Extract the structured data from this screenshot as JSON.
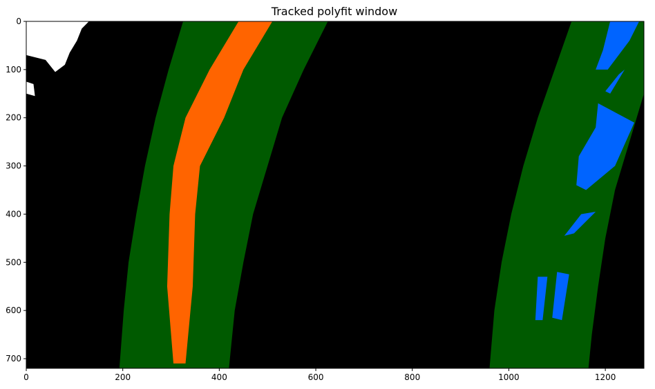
{
  "chart_data": {
    "type": "image",
    "title": "Tracked polyfit window",
    "xlabel": "",
    "ylabel": "",
    "xlim": [
      0,
      1280
    ],
    "ylim": [
      720,
      0
    ],
    "x_ticks": [
      0,
      200,
      400,
      600,
      800,
      1000,
      1200
    ],
    "y_ticks": [
      0,
      100,
      200,
      300,
      400,
      500,
      600,
      700
    ],
    "background_color": "#000000",
    "window_color": "#005a00",
    "left_lane_color": "#ff6400",
    "right_lane_color": "#0064ff",
    "noise_color": "#ffffff",
    "windows": [
      {
        "name": "left-lane-window",
        "left_edge": [
          [
            325,
            0
          ],
          [
            295,
            100
          ],
          [
            268,
            200
          ],
          [
            246,
            300
          ],
          [
            228,
            400
          ],
          [
            212,
            500
          ],
          [
            202,
            600
          ],
          [
            193,
            720
          ]
        ],
        "right_edge": [
          [
            625,
            0
          ],
          [
            575,
            100
          ],
          [
            530,
            200
          ],
          [
            500,
            300
          ],
          [
            470,
            400
          ],
          [
            450,
            500
          ],
          [
            432,
            600
          ],
          [
            420,
            720
          ]
        ]
      },
      {
        "name": "right-lane-window",
        "left_edge": [
          [
            1130,
            0
          ],
          [
            1095,
            100
          ],
          [
            1060,
            200
          ],
          [
            1030,
            300
          ],
          [
            1005,
            400
          ],
          [
            985,
            500
          ],
          [
            970,
            600
          ],
          [
            960,
            720
          ]
        ],
        "right_edge": [
          [
            1280,
            0
          ],
          [
            1280,
            150
          ],
          [
            1250,
            250
          ],
          [
            1220,
            350
          ],
          [
            1200,
            450
          ],
          [
            1185,
            550
          ],
          [
            1172,
            650
          ],
          [
            1165,
            720
          ]
        ]
      }
    ],
    "left_lane_pixels": [
      {
        "x": [
          [
            440,
            510
          ],
          [
            380,
            450
          ],
          [
            330,
            410
          ],
          [
            305,
            360
          ],
          [
            297,
            350
          ],
          [
            292,
            345
          ],
          [
            305,
            330
          ]
        ],
        "y": [
          0,
          100,
          200,
          300,
          400,
          550,
          710
        ]
      }
    ],
    "right_lane_pixels": [
      {
        "segments": [
          [
            [
              1210,
              0
            ],
            [
              1270,
              0
            ],
            [
              1250,
              40
            ],
            [
              1205,
              100
            ],
            [
              1180,
              100
            ],
            [
              1195,
              60
            ]
          ],
          [
            [
              1240,
              100
            ],
            [
              1210,
              150
            ],
            [
              1200,
              145
            ],
            [
              1228,
              110
            ]
          ],
          [
            [
              1185,
              170
            ],
            [
              1260,
              210
            ],
            [
              1220,
              300
            ],
            [
              1160,
              350
            ],
            [
              1140,
              340
            ],
            [
              1145,
              280
            ],
            [
              1180,
              220
            ]
          ],
          [
            [
              1150,
              400
            ],
            [
              1180,
              395
            ],
            [
              1135,
              440
            ],
            [
              1115,
              445
            ]
          ],
          [
            [
              1100,
              520
            ],
            [
              1125,
              525
            ],
            [
              1110,
              620
            ],
            [
              1090,
              615
            ]
          ],
          [
            [
              1060,
              530
            ],
            [
              1080,
              530
            ],
            [
              1070,
              620
            ],
            [
              1055,
              620
            ]
          ]
        ]
      }
    ],
    "noise_pixels": [
      [
        [
          0,
          0
        ],
        [
          130,
          0
        ],
        [
          115,
          15
        ],
        [
          105,
          40
        ],
        [
          90,
          65
        ],
        [
          80,
          90
        ],
        [
          60,
          105
        ],
        [
          40,
          80
        ],
        [
          0,
          70
        ]
      ],
      [
        [
          0,
          125
        ],
        [
          15,
          130
        ],
        [
          18,
          155
        ],
        [
          0,
          150
        ]
      ]
    ]
  }
}
